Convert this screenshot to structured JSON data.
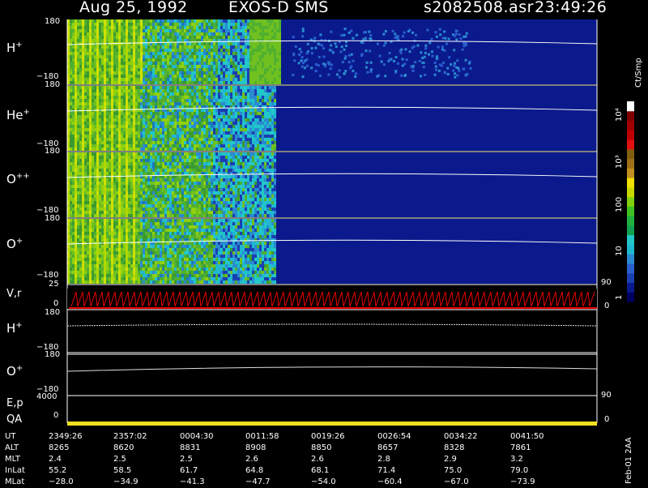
{
  "header": {
    "date": "Aug 25, 1992",
    "instrument": "EXOS-D SMS",
    "filename": "s2082508.asr",
    "time": "23:49:26"
  },
  "footer": {
    "stamp": "Feb-01 2AA"
  },
  "colorbar": {
    "unit_label": "Ct/Smp",
    "tick_labels": [
      "1",
      "10",
      "100",
      "10³",
      "10⁴"
    ],
    "colors": [
      "#000060",
      "#0a1a8c",
      "#1a3fb0",
      "#2a5fd0",
      "#2a8ad0",
      "#20b8d0",
      "#22c8c8",
      "#10a050",
      "#20b040",
      "#40c020",
      "#80d010",
      "#c8d800",
      "#f0e000",
      "#c09020",
      "#a07018",
      "#806010",
      "#e01010",
      "#c00000",
      "#a00000",
      "#800000",
      "#ffffff"
    ]
  },
  "spectrogram_panels": [
    {
      "species": "H",
      "charge": "+",
      "y_max": "180",
      "y_min": "−180"
    },
    {
      "species": "He",
      "charge": "+",
      "y_max": "180",
      "y_min": "−180"
    },
    {
      "species": "O",
      "charge": "++",
      "y_max": "180",
      "y_min": "−180"
    },
    {
      "species": "O",
      "charge": "+",
      "y_max": "180",
      "y_min": "−180"
    }
  ],
  "line_panels": {
    "vr": {
      "label": "V,r",
      "y_max": "25",
      "y_min": "0",
      "right_max": "90",
      "right_min": "0"
    },
    "h": {
      "species": "H",
      "charge": "+",
      "y_max": "180",
      "y_min": "−180"
    },
    "o": {
      "species": "O",
      "charge": "+",
      "y_max": "180",
      "y_min": "−180"
    },
    "ep": {
      "label": "E,p",
      "y_max": "4000",
      "y_min": "0",
      "right": "90"
    },
    "qa": {
      "label": "QA",
      "y": "0",
      "right": "0"
    }
  },
  "ephemeris": {
    "rows": [
      {
        "label": "UT",
        "values": [
          "2349:26",
          "2357:02",
          "0004:30",
          "0011:58",
          "0019:26",
          "0026:54",
          "0034:22",
          "0041:50"
        ]
      },
      {
        "label": "ALT",
        "values": [
          "8265",
          "8620",
          "8831",
          "8908",
          "8850",
          "8657",
          "8328",
          "7861"
        ]
      },
      {
        "label": "MLT",
        "values": [
          "2.4",
          "2.5",
          "2.5",
          "2.6",
          "2.6",
          "2.8",
          "2.9",
          "3.2"
        ]
      },
      {
        "label": "InLat",
        "values": [
          "55.2",
          "58.5",
          "61.7",
          "64.8",
          "68.1",
          "71.4",
          "75.0",
          "79.0"
        ]
      },
      {
        "label": "MLat",
        "values": [
          "−28.0",
          "−34.9",
          "−41.3",
          "−47.7",
          "−54.0",
          "−60.4",
          "−67.0",
          "−73.9"
        ]
      }
    ]
  },
  "chart_data": {
    "type": "heatmap",
    "title": "Aug 25, 1992   EXOS-D SMS",
    "xlabel": "UT",
    "x_ticks": [
      "2349:26",
      "2357:02",
      "0004:30",
      "0011:58",
      "0019:26",
      "0026:54",
      "0034:22",
      "0041:50"
    ],
    "ylabel_panels": [
      "H+",
      "He+",
      "O++",
      "O+",
      "V,r",
      "H+",
      "O+",
      "E,p",
      "QA"
    ],
    "ylim_pitch_angle": [
      -180,
      180
    ],
    "colorbar_unit": "Ct/Smp",
    "colorbar_scale": "log",
    "colorbar_range": [
      1,
      10000
    ]
  }
}
